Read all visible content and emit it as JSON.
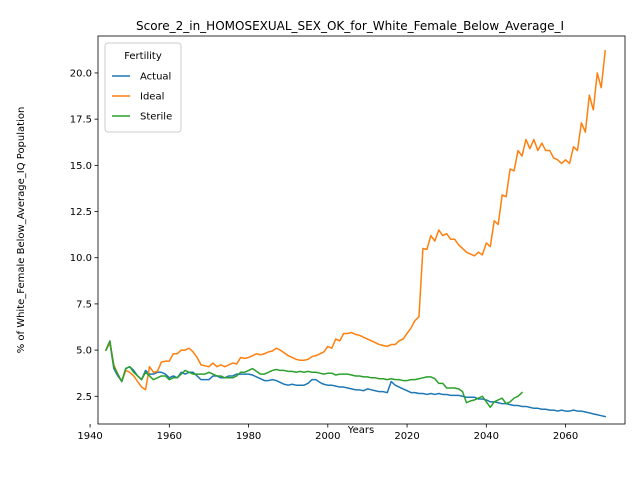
{
  "chart_data": {
    "type": "line",
    "title": "Score_2_in_HOMOSEXUAL_SEX_OK_for_White_Female_Below_Average_I",
    "xlabel": "Years",
    "ylabel": "% of White_Female Below_Average_IQ Population",
    "xlim": [
      1942,
      2075
    ],
    "ylim": [
      1.0,
      22.0
    ],
    "xticks": [
      1940,
      1960,
      1980,
      2000,
      2020,
      2040,
      2060
    ],
    "yticks": [
      2.5,
      5.0,
      7.5,
      10.0,
      12.5,
      15.0,
      17.5,
      20.0
    ],
    "ytick_labels": [
      "2.5",
      "5.0",
      "7.5",
      "10.0",
      "12.5",
      "15.0",
      "17.5",
      "20.0"
    ],
    "grid": false,
    "legend": {
      "title": "Fertility",
      "placement": "top-left"
    },
    "series": [
      {
        "name": "Actual",
        "color": "#1f77b4",
        "x": [
          1944,
          1945,
          1946,
          1947,
          1948,
          1949,
          1950,
          1951,
          1952,
          1953,
          1954,
          1955,
          1956,
          1957,
          1958,
          1959,
          1960,
          1961,
          1962,
          1963,
          1964,
          1965,
          1966,
          1967,
          1968,
          1969,
          1970,
          1971,
          1972,
          1973,
          1974,
          1975,
          1976,
          1977,
          1978,
          1979,
          1980,
          1981,
          1982,
          1983,
          1984,
          1985,
          1986,
          1987,
          1988,
          1989,
          1990,
          1991,
          1992,
          1993,
          1994,
          1995,
          1996,
          1997,
          1998,
          1999,
          2000,
          2001,
          2002,
          2003,
          2004,
          2005,
          2006,
          2007,
          2008,
          2009,
          2010,
          2011,
          2012,
          2013,
          2014,
          2015,
          2016,
          2017,
          2018,
          2019,
          2020,
          2021,
          2022,
          2023,
          2024,
          2025,
          2026,
          2027,
          2028,
          2029,
          2030,
          2031,
          2032,
          2033,
          2034,
          2035,
          2036,
          2037,
          2038,
          2039,
          2040,
          2041,
          2042,
          2043,
          2044,
          2045,
          2046,
          2047,
          2048,
          2049,
          2050,
          2051,
          2052,
          2053,
          2054,
          2055,
          2056,
          2057,
          2058,
          2059,
          2060,
          2061,
          2062,
          2063,
          2064,
          2065,
          2066,
          2067,
          2068,
          2069,
          2070
        ],
        "y": [
          5.0,
          5.4,
          4.0,
          3.6,
          3.3,
          4.0,
          4.1,
          3.9,
          3.6,
          3.4,
          3.9,
          3.7,
          3.7,
          3.8,
          3.8,
          3.7,
          3.5,
          3.6,
          3.5,
          3.8,
          3.7,
          3.8,
          3.8,
          3.6,
          3.4,
          3.4,
          3.4,
          3.6,
          3.6,
          3.5,
          3.5,
          3.6,
          3.6,
          3.7,
          3.7,
          3.7,
          3.7,
          3.65,
          3.55,
          3.45,
          3.35,
          3.35,
          3.4,
          3.35,
          3.25,
          3.15,
          3.1,
          3.15,
          3.1,
          3.1,
          3.1,
          3.2,
          3.4,
          3.4,
          3.25,
          3.15,
          3.1,
          3.1,
          3.05,
          3.0,
          3.0,
          2.95,
          2.9,
          2.85,
          2.85,
          2.8,
          2.9,
          2.85,
          2.8,
          2.75,
          2.75,
          2.7,
          3.3,
          3.1,
          3.0,
          2.9,
          2.8,
          2.7,
          2.7,
          2.65,
          2.65,
          2.6,
          2.65,
          2.6,
          2.65,
          2.6,
          2.6,
          2.55,
          2.55,
          2.55,
          2.5,
          2.45,
          2.45,
          2.45,
          2.35,
          2.35,
          2.3,
          2.2,
          2.2,
          2.15,
          2.1,
          2.1,
          2.05,
          2.0,
          2.0,
          1.95,
          1.95,
          1.9,
          1.85,
          1.85,
          1.8,
          1.8,
          1.75,
          1.75,
          1.7,
          1.75,
          1.7,
          1.7,
          1.75,
          1.7,
          1.7,
          1.65,
          1.6,
          1.55,
          1.5,
          1.45,
          1.4
        ]
      },
      {
        "name": "Ideal",
        "color": "#ff7f0e",
        "x": [
          1944,
          1945,
          1946,
          1947,
          1948,
          1949,
          1950,
          1951,
          1952,
          1953,
          1954,
          1955,
          1956,
          1957,
          1958,
          1959,
          1960,
          1961,
          1962,
          1963,
          1964,
          1965,
          1966,
          1967,
          1968,
          1969,
          1970,
          1971,
          1972,
          1973,
          1974,
          1975,
          1976,
          1977,
          1978,
          1979,
          1980,
          1981,
          1982,
          1983,
          1984,
          1985,
          1986,
          1987,
          1988,
          1989,
          1990,
          1991,
          1992,
          1993,
          1994,
          1995,
          1996,
          1997,
          1998,
          1999,
          2000,
          2001,
          2002,
          2003,
          2004,
          2005,
          2006,
          2007,
          2008,
          2009,
          2010,
          2011,
          2012,
          2013,
          2014,
          2015,
          2016,
          2017,
          2018,
          2019,
          2020,
          2021,
          2022,
          2023,
          2024,
          2025,
          2026,
          2027,
          2028,
          2029,
          2030,
          2031,
          2032,
          2033,
          2034,
          2035,
          2036,
          2037,
          2038,
          2039,
          2040,
          2041,
          2042,
          2043,
          2044,
          2045,
          2046,
          2047,
          2048,
          2049,
          2050,
          2051,
          2052,
          2053,
          2054,
          2055,
          2056,
          2057,
          2058,
          2059,
          2060,
          2061,
          2062,
          2063,
          2064,
          2065,
          2066,
          2067,
          2068,
          2069,
          2070
        ],
        "y": [
          5.0,
          5.4,
          4.2,
          3.7,
          3.3,
          3.9,
          3.8,
          3.6,
          3.3,
          3.0,
          2.85,
          4.1,
          3.8,
          3.85,
          4.35,
          4.4,
          4.4,
          4.8,
          4.8,
          5.0,
          5.0,
          5.1,
          4.9,
          4.6,
          4.2,
          4.15,
          4.1,
          4.3,
          4.1,
          4.2,
          4.1,
          4.2,
          4.3,
          4.25,
          4.6,
          4.55,
          4.6,
          4.7,
          4.8,
          4.75,
          4.8,
          4.9,
          4.95,
          5.1,
          5.0,
          4.85,
          4.7,
          4.6,
          4.5,
          4.45,
          4.45,
          4.5,
          4.65,
          4.7,
          4.8,
          4.9,
          5.2,
          5.1,
          5.6,
          5.5,
          5.9,
          5.9,
          5.95,
          5.85,
          5.8,
          5.7,
          5.6,
          5.5,
          5.4,
          5.3,
          5.25,
          5.2,
          5.3,
          5.3,
          5.5,
          5.6,
          5.9,
          6.2,
          6.6,
          6.8,
          10.5,
          10.45,
          11.2,
          10.9,
          11.5,
          11.2,
          11.3,
          11.0,
          11.0,
          10.7,
          10.5,
          10.3,
          10.2,
          10.1,
          10.3,
          10.15,
          10.8,
          10.6,
          12.0,
          11.8,
          13.4,
          13.3,
          14.8,
          14.7,
          15.8,
          15.5,
          16.4,
          15.9,
          16.4,
          15.8,
          16.2,
          15.8,
          15.8,
          15.4,
          15.3,
          15.1,
          15.3,
          15.1,
          16.0,
          15.8,
          17.3,
          16.8,
          18.8,
          18.0,
          20.0,
          19.2,
          21.2
        ]
      },
      {
        "name": "Sterile",
        "color": "#2ca02c",
        "x": [
          1944,
          1945,
          1946,
          1947,
          1948,
          1949,
          1950,
          1951,
          1952,
          1953,
          1954,
          1955,
          1956,
          1957,
          1958,
          1959,
          1960,
          1961,
          1962,
          1963,
          1964,
          1965,
          1966,
          1967,
          1968,
          1969,
          1970,
          1971,
          1972,
          1973,
          1974,
          1975,
          1976,
          1977,
          1978,
          1979,
          1980,
          1981,
          1982,
          1983,
          1984,
          1985,
          1986,
          1987,
          1988,
          1989,
          1990,
          1991,
          1992,
          1993,
          1994,
          1995,
          1996,
          1997,
          1998,
          1999,
          2000,
          2001,
          2002,
          2003,
          2004,
          2005,
          2006,
          2007,
          2008,
          2009,
          2010,
          2011,
          2012,
          2013,
          2014,
          2015,
          2016,
          2017,
          2018,
          2019,
          2020,
          2021,
          2022,
          2023,
          2024,
          2025,
          2026,
          2027,
          2028,
          2029,
          2030,
          2031,
          2032,
          2033,
          2034,
          2035,
          2036,
          2037,
          2038,
          2039,
          2040,
          2041,
          2042,
          2043,
          2044,
          2045,
          2046,
          2047,
          2048,
          2049
        ],
        "y": [
          5.0,
          5.5,
          4.1,
          3.7,
          3.3,
          4.0,
          4.1,
          3.8,
          3.6,
          3.4,
          3.8,
          3.6,
          3.4,
          3.5,
          3.6,
          3.6,
          3.4,
          3.5,
          3.5,
          3.7,
          3.9,
          3.8,
          3.7,
          3.7,
          3.7,
          3.7,
          3.8,
          3.7,
          3.6,
          3.6,
          3.5,
          3.5,
          3.5,
          3.6,
          3.8,
          3.8,
          3.9,
          4.0,
          3.85,
          3.7,
          3.7,
          3.8,
          3.9,
          3.95,
          3.9,
          3.9,
          3.85,
          3.85,
          3.8,
          3.85,
          3.8,
          3.85,
          3.8,
          3.8,
          3.75,
          3.7,
          3.75,
          3.75,
          3.65,
          3.7,
          3.7,
          3.7,
          3.65,
          3.6,
          3.6,
          3.55,
          3.55,
          3.5,
          3.5,
          3.45,
          3.45,
          3.4,
          3.45,
          3.4,
          3.4,
          3.35,
          3.35,
          3.4,
          3.4,
          3.45,
          3.5,
          3.55,
          3.55,
          3.45,
          3.2,
          3.2,
          2.95,
          2.95,
          2.95,
          2.9,
          2.75,
          2.15,
          2.25,
          2.3,
          2.4,
          2.5,
          2.2,
          1.9,
          2.2,
          2.3,
          2.4,
          2.1,
          2.2,
          2.4,
          2.5,
          2.7
        ]
      }
    ]
  }
}
